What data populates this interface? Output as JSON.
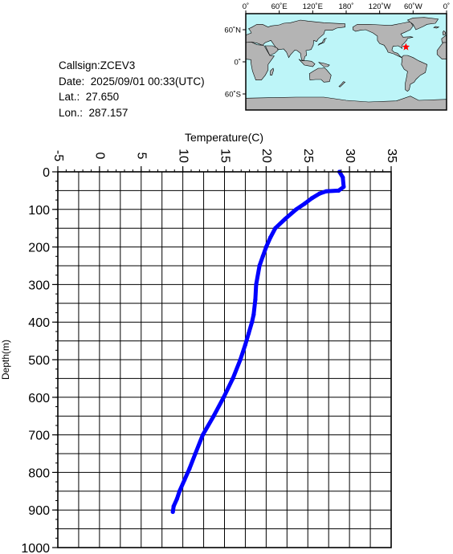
{
  "station": {
    "callsign_label": "Callsign:",
    "callsign": "ZCEV3",
    "date_label": "Date:",
    "date": "2025/09/01 00:33(UTC)",
    "lat_label": "Lat.:",
    "lat": "27.650",
    "lon_label": "Lon.:",
    "lon": "287.157"
  },
  "map": {
    "lon_ticks": [
      "0˚",
      "60˚E",
      "120˚E",
      "180˚",
      "120˚W",
      "60˚W",
      "0˚"
    ],
    "lat_ticks": [
      "60˚N",
      "0˚",
      "60˚S"
    ],
    "ocean_color": "#bdf5f8",
    "land_color": "#b4b4b4",
    "marker_color": "#ff0000",
    "marker_lon": 287.157,
    "marker_lat": 27.65
  },
  "chart_data": {
    "type": "line",
    "xlabel": "Temperature(C)",
    "ylabel": "Depth(m)",
    "xlim": [
      -5,
      35
    ],
    "ylim": [
      1000,
      0
    ],
    "x_ticks": [
      "-5",
      "0",
      "5",
      "10",
      "15",
      "20",
      "25",
      "30",
      "35"
    ],
    "y_ticks": [
      "0",
      "100",
      "200",
      "300",
      "400",
      "500",
      "600",
      "700",
      "800",
      "900",
      "1000"
    ],
    "grid": true,
    "series": [
      {
        "color": "#0000ff",
        "x": [
          28.8,
          29.2,
          29.3,
          28.7,
          27.2,
          26.4,
          25.5,
          24.6,
          23.6,
          22.3,
          21.1,
          20.5,
          20.0,
          19.6,
          19.2,
          18.8,
          18.7,
          18.5,
          18.3,
          17.9,
          17.5,
          16.9,
          16.0,
          14.9,
          13.7,
          12.4,
          11.5,
          10.8,
          10.2,
          9.6,
          9.3,
          8.9,
          8.8
        ],
        "y": [
          0,
          15,
          40,
          50,
          52,
          58,
          70,
          85,
          100,
          125,
          150,
          175,
          200,
          225,
          250,
          300,
          340,
          380,
          400,
          430,
          460,
          500,
          550,
          600,
          650,
          700,
          750,
          790,
          820,
          850,
          870,
          890,
          905
        ]
      }
    ]
  }
}
